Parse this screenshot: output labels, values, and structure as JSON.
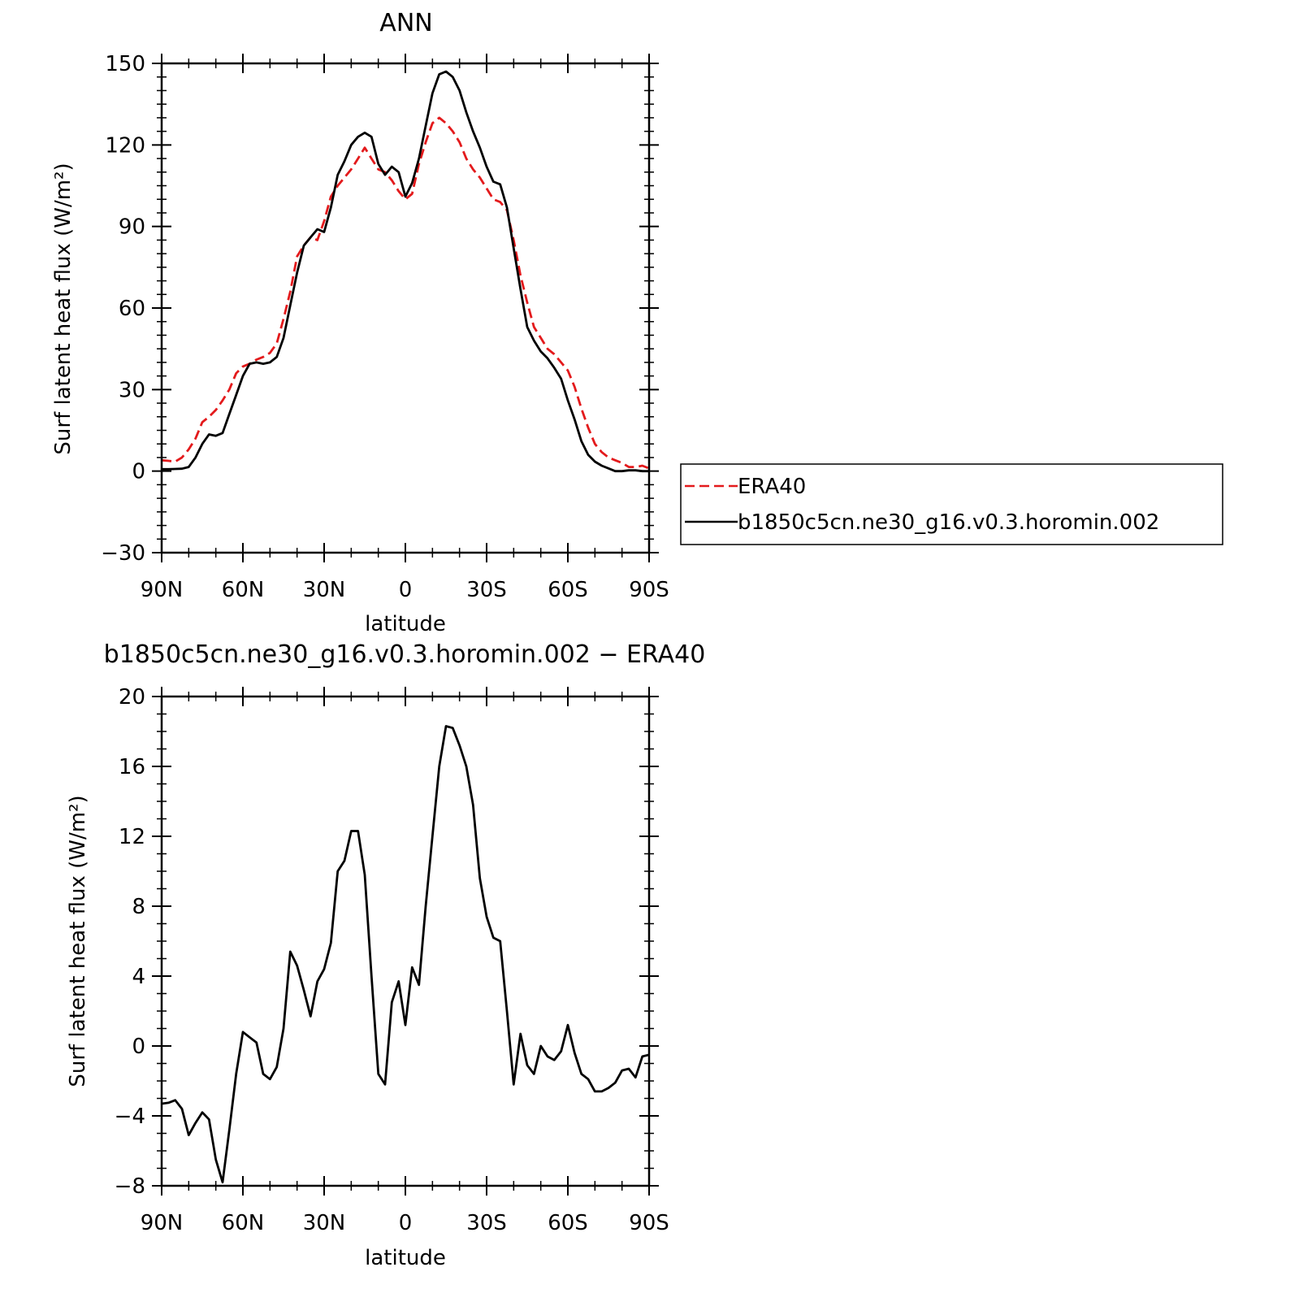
{
  "chart_data": [
    {
      "type": "line",
      "title": "ANN",
      "xlabel": "latitude",
      "ylabel": "Surf latent heat flux (W/m²)",
      "xlim": [
        90,
        -90
      ],
      "ylim": [
        -30,
        150
      ],
      "x_ticks": [
        90,
        60,
        30,
        0,
        -30,
        -60,
        -90
      ],
      "x_tick_labels": [
        "90N",
        "60N",
        "30N",
        "0",
        "30S",
        "60S",
        "90S"
      ],
      "y_ticks": [
        -30,
        0,
        30,
        60,
        90,
        120,
        150
      ],
      "y_tick_labels": [
        "−30",
        "0",
        "30",
        "60",
        "90",
        "120",
        "150"
      ],
      "grid": false,
      "legend_position": "right",
      "series": [
        {
          "name": "ERA40",
          "color": "#e31a1c",
          "dash": "dashed",
          "x": [
            90,
            87.5,
            85,
            82.5,
            80,
            77.5,
            75,
            72.5,
            70,
            67.5,
            65,
            62.5,
            60,
            57.5,
            55,
            52.5,
            50,
            47.5,
            45,
            42.5,
            40,
            37.5,
            35,
            32.5,
            30,
            27.5,
            25,
            22.5,
            20,
            17.5,
            15,
            12.5,
            10,
            7.5,
            5,
            2.5,
            0,
            -2.5,
            -5,
            -7.5,
            -10,
            -12.5,
            -15,
            -17.5,
            -20,
            -22.5,
            -25,
            -27.5,
            -30,
            -32.5,
            -35,
            -37.5,
            -40,
            -42.5,
            -45,
            -47.5,
            -50,
            -52.5,
            -55,
            -57.5,
            -60,
            -62.5,
            -65,
            -67.5,
            -70,
            -72.5,
            -75,
            -77.5,
            -80,
            -82.5,
            -85,
            -87.5,
            -90
          ],
          "y": [
            4,
            3.8,
            3.5,
            5,
            8,
            12,
            18,
            20,
            22.5,
            26,
            30,
            36,
            38.5,
            39.5,
            41,
            42,
            43.5,
            47,
            56,
            66,
            79,
            83,
            86,
            85,
            92,
            101,
            105,
            108,
            111,
            115,
            119,
            115,
            111,
            110,
            107,
            103,
            100,
            102,
            113,
            121,
            128,
            130,
            128,
            125,
            121,
            115,
            111,
            108,
            104,
            100,
            99,
            96,
            85,
            72,
            62,
            53,
            49,
            45,
            43,
            40,
            37,
            31,
            23,
            16,
            10,
            7,
            5,
            4,
            3,
            1.5,
            1.5,
            2,
            1
          ]
        },
        {
          "name": "b1850c5cn.ne30_g16.v0.3.horomin.002",
          "color": "#000000",
          "dash": "solid",
          "x": [
            90,
            87.5,
            85,
            82.5,
            80,
            77.5,
            75,
            72.5,
            70,
            67.5,
            65,
            62.5,
            60,
            57.5,
            55,
            52.5,
            50,
            47.5,
            45,
            42.5,
            40,
            37.5,
            35,
            32.5,
            30,
            27.5,
            25,
            22.5,
            20,
            17.5,
            15,
            12.5,
            10,
            7.5,
            5,
            2.5,
            0,
            -2.5,
            -5,
            -7.5,
            -10,
            -12.5,
            -15,
            -17.5,
            -20,
            -22.5,
            -25,
            -27.5,
            -30,
            -32.5,
            -35,
            -37.5,
            -40,
            -42.5,
            -45,
            -47.5,
            -50,
            -52.5,
            -55,
            -57.5,
            -60,
            -62.5,
            -65,
            -67.5,
            -70,
            -72.5,
            -75,
            -77.5,
            -80,
            -82.5,
            -85,
            -87.5,
            -90
          ],
          "y": [
            0.7,
            0.7,
            0.8,
            0.9,
            1.5,
            5,
            10,
            13.5,
            13,
            14,
            21,
            28,
            35,
            39.5,
            40,
            39.5,
            40,
            42,
            49,
            61,
            73,
            83,
            86,
            89,
            88,
            97,
            109,
            114,
            120,
            123,
            124.5,
            123,
            113,
            109,
            112,
            110,
            101,
            106,
            115,
            127,
            139,
            146,
            147,
            145,
            140,
            132,
            125,
            119,
            112,
            106.5,
            105.5,
            97,
            82,
            67,
            53,
            48,
            44,
            41.5,
            38,
            34,
            26,
            19,
            11,
            6,
            3.5,
            2,
            1,
            0,
            0,
            0.3,
            0.3,
            0,
            0
          ]
        }
      ]
    },
    {
      "type": "line",
      "title": "b1850c5cn.ne30_g16.v0.3.horomin.002 − ERA40",
      "xlabel": "latitude",
      "ylabel": "Surf latent heat flux (W/m²)",
      "xlim": [
        90,
        -90
      ],
      "ylim": [
        -8,
        20
      ],
      "x_ticks": [
        90,
        60,
        30,
        0,
        -30,
        -60,
        -90
      ],
      "x_tick_labels": [
        "90N",
        "60N",
        "30N",
        "0",
        "30S",
        "60S",
        "90S"
      ],
      "y_ticks": [
        -8,
        -4,
        0,
        4,
        8,
        12,
        16,
        20
      ],
      "y_tick_labels": [
        "−8",
        "−4",
        "0",
        "4",
        "8",
        "12",
        "16",
        "20"
      ],
      "grid": false,
      "series": [
        {
          "color": "#000000",
          "dash": "solid",
          "x": [
            90,
            87.5,
            85,
            82.5,
            80,
            77.5,
            75,
            72.5,
            70,
            67.5,
            65,
            62.5,
            60,
            57.5,
            55,
            52.5,
            50,
            47.5,
            45,
            42.5,
            40,
            37.5,
            35,
            32.5,
            30,
            27.5,
            25,
            22.5,
            20,
            17.5,
            15,
            12.5,
            10,
            7.5,
            5,
            2.5,
            0,
            -2.5,
            -5,
            -7.5,
            -10,
            -12.5,
            -15,
            -17.5,
            -20,
            -22.5,
            -25,
            -27.5,
            -30,
            -32.5,
            -35,
            -37.5,
            -40,
            -42.5,
            -45,
            -47.5,
            -50,
            -52.5,
            -55,
            -57.5,
            -60,
            -62.5,
            -65,
            -67.5,
            -70,
            -72.5,
            -75,
            -77.5,
            -80,
            -82.5,
            -85,
            -87.5,
            -90
          ],
          "y": [
            -3.3,
            -3.25,
            -3.1,
            -3.6,
            -5.1,
            -4.4,
            -3.8,
            -4.2,
            -6.5,
            -7.8,
            -4.8,
            -1.6,
            0.8,
            0.5,
            0.2,
            -1.6,
            -1.9,
            -1.2,
            1.0,
            5.4,
            4.6,
            3.2,
            1.7,
            3.7,
            4.4,
            5.9,
            10.0,
            10.6,
            12.3,
            12.3,
            9.8,
            4.0,
            -1.6,
            -2.2,
            2.5,
            3.7,
            1.2,
            4.5,
            3.5,
            8.0,
            12.0,
            16.0,
            18.3,
            18.2,
            17.2,
            16.0,
            13.8,
            9.6,
            7.4,
            6.2,
            6.0,
            2.0,
            -2.2,
            0.7,
            -1.1,
            -1.6,
            0.0,
            -0.6,
            -0.8,
            -0.3,
            1.2,
            -0.4,
            -1.6,
            -1.9,
            -2.6,
            -2.6,
            -2.4,
            -2.1,
            -1.4,
            -1.3,
            -1.8,
            -0.6,
            -0.5
          ]
        }
      ]
    }
  ]
}
